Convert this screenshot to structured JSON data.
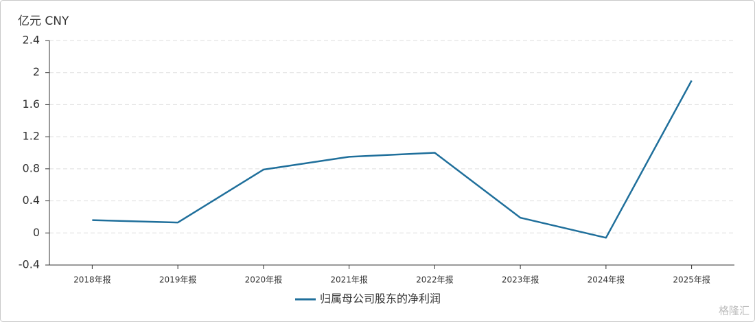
{
  "chart_data": {
    "type": "line",
    "unit_label": "亿元  CNY",
    "categories": [
      "2018年报",
      "2019年报",
      "2020年报",
      "2021年报",
      "2022年报",
      "2023年报",
      "2024年报",
      "2025年报"
    ],
    "series": [
      {
        "name": "归属母公司股东的净利润",
        "color": "#1f6f9b",
        "values": [
          0.16,
          0.13,
          0.79,
          0.95,
          1.0,
          0.19,
          -0.06,
          1.9
        ]
      }
    ],
    "ylim": [
      -0.4,
      2.4
    ],
    "yticks": [
      -0.4,
      0,
      0.4,
      0.8,
      1.2,
      1.6,
      2,
      2.4
    ],
    "grid": true,
    "watermark": "格隆汇"
  }
}
